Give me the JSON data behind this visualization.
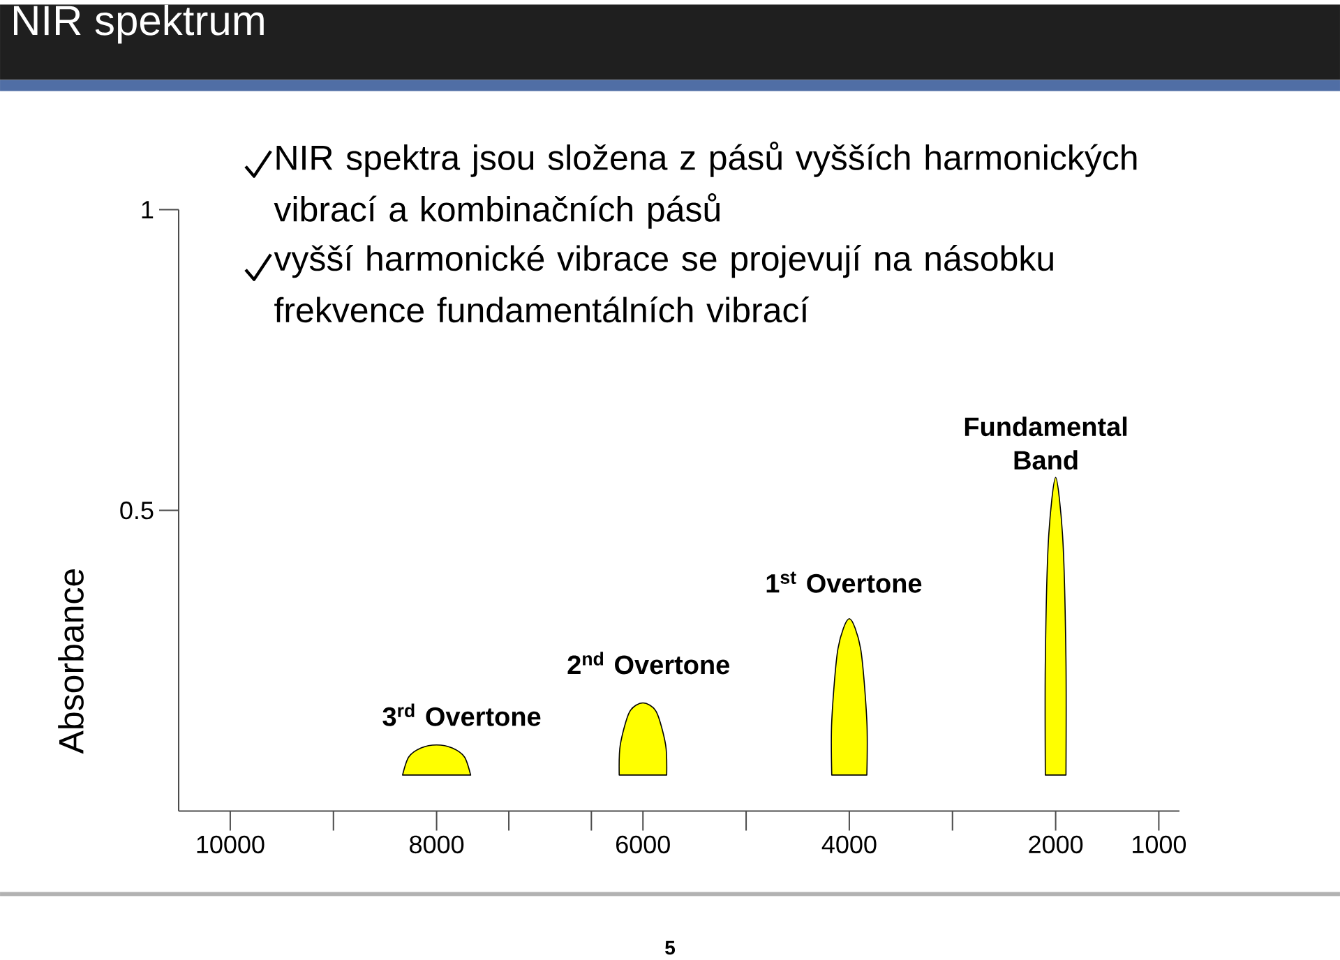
{
  "chart_data": {
    "type": "area",
    "title": "NIR spektrum",
    "ylabel": "Absorbance",
    "xlim": [
      10500,
      800
    ],
    "ylim": [
      0,
      1
    ],
    "xticks": [
      10000,
      {
        "value": 9000,
        "label": null
      },
      8000,
      {
        "value": 7300,
        "label": null
      },
      {
        "value": 6500,
        "label": null
      },
      6000,
      {
        "value": 5000,
        "label": null
      },
      4000,
      {
        "value": 3000,
        "label": null
      },
      2000,
      1000
    ],
    "yticks": [
      0.5,
      1
    ],
    "series": [
      {
        "color": "#ffff00",
        "x": [
          8330,
          8270,
          8150,
          8000,
          7850,
          7730,
          7670
        ],
        "values": [
          0.06,
          0.09,
          0.105,
          0.11,
          0.105,
          0.09,
          0.06
        ]
      },
      {
        "color": "#ffff00",
        "x": [
          6230,
          6220,
          6130,
          6000,
          5870,
          5780,
          5770
        ],
        "values": [
          0.06,
          0.11,
          0.165,
          0.18,
          0.165,
          0.11,
          0.06
        ]
      },
      {
        "color": "#ffff00",
        "x": [
          4170,
          4170,
          4110,
          4000,
          3890,
          3830,
          3830
        ],
        "values": [
          0.06,
          0.15,
          0.27,
          0.32,
          0.27,
          0.15,
          0.06
        ]
      },
      {
        "color": "#ffff00",
        "x": [
          2100,
          2100,
          2070,
          2000,
          1930,
          1900,
          1900
        ],
        "values": [
          0.06,
          0.25,
          0.45,
          0.555,
          0.45,
          0.25,
          0.06
        ]
      }
    ],
    "annotations": [
      "NIR spektra jsou složena z pásů vyšších harmonických vibrací a kombinačních pásů",
      "vyšší harmonické vibrace se projevují na násobku frekvence fundamentálních vibrací",
      "3$^{rd}$ Overtone",
      "2$^{nd}$ Overtone",
      "1$^{st}$ Overtone",
      "Fundamental Band",
      "5"
    ]
  }
}
